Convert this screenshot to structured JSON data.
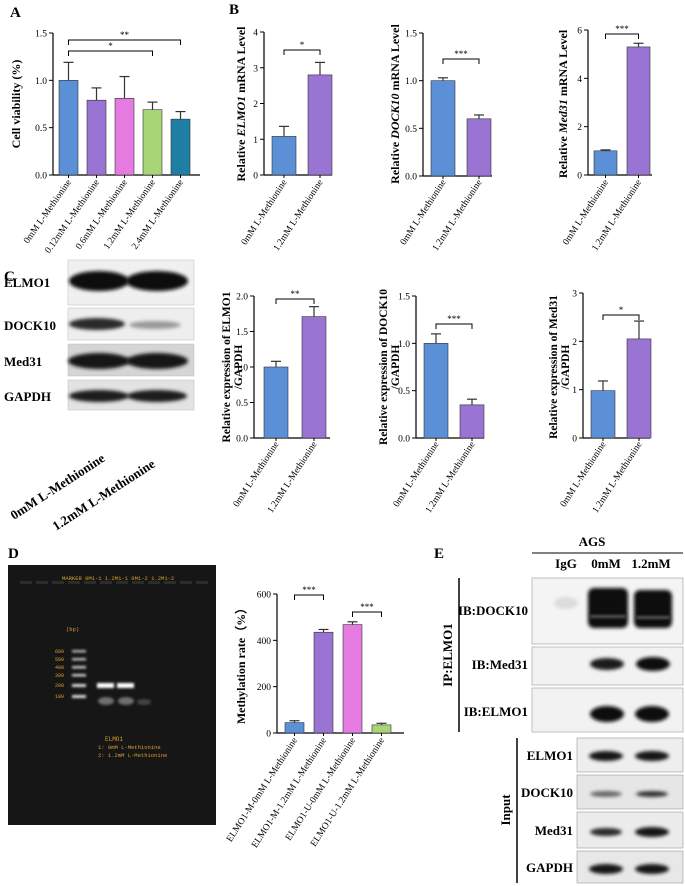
{
  "panels": {
    "A": "A",
    "B": "B",
    "C": "C",
    "D": "D",
    "E": "E"
  },
  "chart_data": [
    {
      "id": "A",
      "type": "bar",
      "ylabel": "Cell viability (%)",
      "categories": [
        "0mM L-Methionine",
        "0.12mM L-Methionine",
        "0.6mM L-Methionine",
        "1.2mM L-Methionine",
        "2.4mM L-Methionine"
      ],
      "values": [
        1.0,
        0.79,
        0.81,
        0.69,
        0.59
      ],
      "errors": [
        0.19,
        0.13,
        0.23,
        0.08,
        0.08
      ],
      "colors": [
        "#5b8fd6",
        "#9a74d2",
        "#e57be0",
        "#a8d676",
        "#1f7ea3"
      ],
      "ylim": [
        0,
        1.5
      ],
      "yticks": [
        "0.0",
        "0.5",
        "1.0",
        "1.5"
      ],
      "significance": [
        {
          "from": 0,
          "to": 3,
          "label": "*"
        },
        {
          "from": 0,
          "to": 4,
          "label": "**"
        }
      ]
    },
    {
      "id": "B1",
      "type": "bar",
      "ylabel_parts": [
        "Relative ",
        "ELMO1",
        " mRNA Level"
      ],
      "categories": [
        "0mM L-Methionine",
        "1.2mM L-Methionine"
      ],
      "values": [
        1.08,
        2.8
      ],
      "errors": [
        0.28,
        0.35
      ],
      "colors": [
        "#5b8fd6",
        "#9a74d2"
      ],
      "ylim": [
        0,
        4
      ],
      "yticks": [
        "0",
        "1",
        "2",
        "3",
        "4"
      ],
      "significance": [
        {
          "from": 0,
          "to": 1,
          "label": "*"
        }
      ]
    },
    {
      "id": "B2",
      "type": "bar",
      "ylabel_parts": [
        "Relative ",
        "DOCK10",
        " mRNA Level"
      ],
      "categories": [
        "0mM L-Methionine",
        "1.2mM L-Methionine"
      ],
      "values": [
        1.0,
        0.6
      ],
      "errors": [
        0.03,
        0.04
      ],
      "colors": [
        "#5b8fd6",
        "#9a74d2"
      ],
      "ylim": [
        0,
        1.5
      ],
      "yticks": [
        "0.0",
        "0.5",
        "1.0",
        "1.5"
      ],
      "significance": [
        {
          "from": 0,
          "to": 1,
          "label": "***"
        }
      ]
    },
    {
      "id": "B3",
      "type": "bar",
      "ylabel_parts": [
        "Relative ",
        "Med31",
        " mRNA Level"
      ],
      "categories": [
        "0mM L-Methionine",
        "1.2mM L-Methionine"
      ],
      "values": [
        1.0,
        5.3
      ],
      "errors": [
        0.04,
        0.15
      ],
      "colors": [
        "#5b8fd6",
        "#9a74d2"
      ],
      "ylim": [
        0,
        6
      ],
      "yticks": [
        "0",
        "2",
        "4",
        "6"
      ],
      "significance": [
        {
          "from": 0,
          "to": 1,
          "label": "***"
        }
      ]
    },
    {
      "id": "C1",
      "type": "bar",
      "ylabel_lines": [
        "Relative expression of ELMO1",
        "/GAPDH"
      ],
      "categories": [
        "0mM L-Methionine",
        "1.2mM L-Methionine"
      ],
      "values": [
        1.0,
        1.71
      ],
      "errors": [
        0.08,
        0.14
      ],
      "colors": [
        "#5b8fd6",
        "#9a74d2"
      ],
      "ylim": [
        0,
        2.0
      ],
      "yticks": [
        "0.0",
        "0.5",
        "1.0",
        "1.5",
        "2.0"
      ],
      "significance": [
        {
          "from": 0,
          "to": 1,
          "label": "**"
        }
      ]
    },
    {
      "id": "C2",
      "type": "bar",
      "ylabel_lines": [
        "Relative expression of DOCK10",
        "/GAPDH"
      ],
      "categories": [
        "0mM L-Methionine",
        "1.2mM L-Methionine"
      ],
      "values": [
        1.0,
        0.35
      ],
      "errors": [
        0.1,
        0.06
      ],
      "colors": [
        "#5b8fd6",
        "#9a74d2"
      ],
      "ylim": [
        0,
        1.5
      ],
      "yticks": [
        "0.0",
        "0.5",
        "1.0",
        "1.5"
      ],
      "significance": [
        {
          "from": 0,
          "to": 1,
          "label": "***"
        }
      ]
    },
    {
      "id": "C3",
      "type": "bar",
      "ylabel_lines": [
        "Relative expression of Med31",
        "/GAPDH"
      ],
      "categories": [
        "0mM L-Methionine",
        "1.2mM L-Methionine"
      ],
      "values": [
        0.98,
        2.05
      ],
      "errors": [
        0.2,
        0.37
      ],
      "colors": [
        "#5b8fd6",
        "#9a74d2"
      ],
      "ylim": [
        0,
        3
      ],
      "yticks": [
        "0",
        "1",
        "2",
        "3"
      ],
      "significance": [
        {
          "from": 0,
          "to": 1,
          "label": "*"
        }
      ]
    },
    {
      "id": "D2",
      "type": "bar",
      "ylabel": "Methylation rate（%）",
      "categories": [
        "ELMO1-M-0mM L-Methionine",
        "ELMO1-M-1.2mM L-Methionine",
        "ELMO1-U-0mM L-Methionine",
        "ELMO1-U-1.2mM L-Methionine"
      ],
      "values": [
        45,
        435,
        468,
        35
      ],
      "errors": [
        8,
        12,
        12,
        7
      ],
      "colors": [
        "#5b8fd6",
        "#9a74d2",
        "#e57be0",
        "#a8d676"
      ],
      "ylim": [
        0,
        600
      ],
      "yticks": [
        "0",
        "200",
        "400",
        "600"
      ],
      "significance": [
        {
          "from": 0,
          "to": 1,
          "label": "***"
        },
        {
          "from": 2,
          "to": 3,
          "label": "***"
        }
      ]
    }
  ],
  "blotC": {
    "rows": [
      "ELMO1",
      "DOCK10",
      "Med31",
      "GAPDH"
    ],
    "lanes": [
      "0mM L-Methionine",
      "1.2mM L-Methionine"
    ]
  },
  "gel": {
    "lane_labels": "MARKER 0M1-1 1.2M1-1 0M1-2 1.2M1-2",
    "bp": "(bp)",
    "ladder": [
      "600",
      "500",
      "400",
      "300",
      "200",
      "100"
    ],
    "title": "ELMO1",
    "legend1": "1: 0mM L-Methionine",
    "legend2": "2: 1.2mM L-Methionine"
  },
  "blotE": {
    "cell": "AGS",
    "lanes": [
      "IgG",
      "0mM",
      "1.2mM"
    ],
    "ip_label": "IP:ELMO1",
    "ip_rows": [
      "IB:DOCK10",
      "IB:Med31",
      "IB:ELMO1"
    ],
    "input_label": "Input",
    "input_rows": [
      "ELMO1",
      "DOCK10",
      "Med31",
      "GAPDH"
    ]
  }
}
